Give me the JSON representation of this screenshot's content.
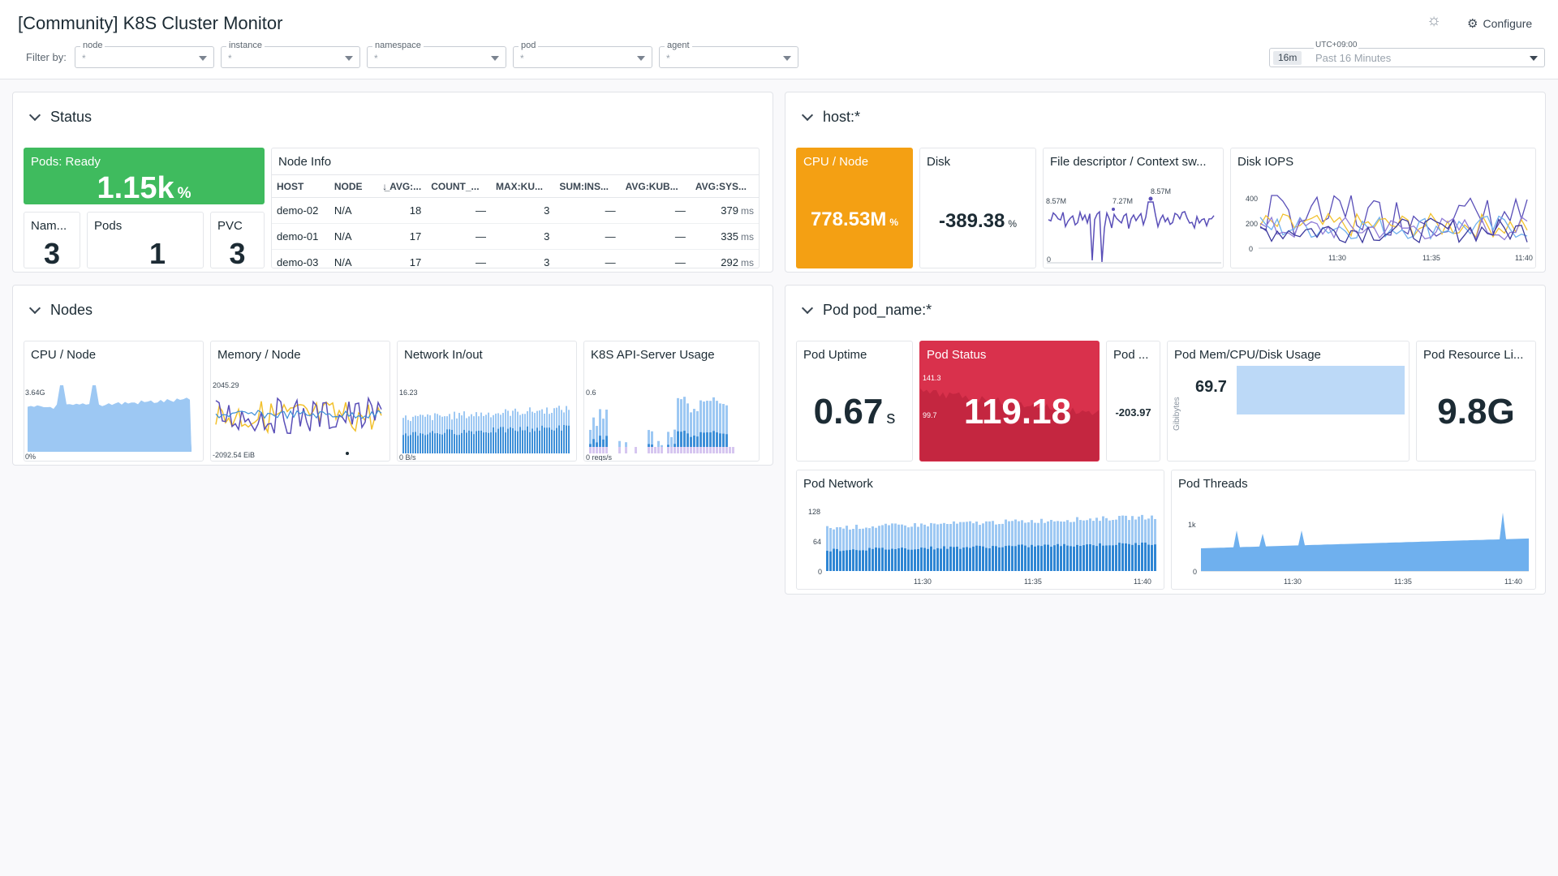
{
  "header": {
    "title": "[Community] K8S Cluster Monitor",
    "configure_label": "Configure",
    "filter_by_label": "Filter by:",
    "filters": [
      {
        "label": "node",
        "value": "*"
      },
      {
        "label": "instance",
        "value": "*"
      },
      {
        "label": "namespace",
        "value": "*"
      },
      {
        "label": "pod",
        "value": "*"
      },
      {
        "label": "agent",
        "value": "*"
      }
    ],
    "time": {
      "timezone": "UTC+09:00",
      "badge": "16m",
      "label": "Past 16 Minutes"
    }
  },
  "icons": {
    "theme": "sun-gear-icon",
    "configure": "gear-icon",
    "collapse": "chevron-down-icon"
  },
  "colors": {
    "green": "#3fbb5e",
    "orange": "#f4a013",
    "red": "#d9314c",
    "blue": "#3d8fd8",
    "light_blue": "#9dc8f3",
    "purple": "#5a4fb8"
  },
  "status": {
    "title": "Status",
    "pods_ready": {
      "title": "Pods: Ready",
      "value": "1.15k",
      "unit": "%"
    },
    "namespaces": {
      "title": "Nam...",
      "value": "3"
    },
    "pods": {
      "title": "Pods",
      "value": "1"
    },
    "pvc": {
      "title": "PVC",
      "value": "3"
    },
    "node_info": {
      "title": "Node Info",
      "columns": [
        "HOST",
        "NODE",
        "AVG:...",
        "COUNT_...",
        "MAX:KU...",
        "SUM:INS...",
        "AVG:KUB...",
        "AVG:SYS..."
      ],
      "rows": [
        {
          "host": "demo-02",
          "node": "N/A",
          "avg": "18",
          "count": "—",
          "max": "3",
          "sum": "—",
          "avg_kub": "—",
          "avg_sys": "379",
          "unit": "ms"
        },
        {
          "host": "demo-01",
          "node": "N/A",
          "avg": "17",
          "count": "—",
          "max": "3",
          "sum": "—",
          "avg_kub": "—",
          "avg_sys": "335",
          "unit": "ms"
        },
        {
          "host": "demo-03",
          "node": "N/A",
          "avg": "17",
          "count": "—",
          "max": "3",
          "sum": "—",
          "avg_kub": "—",
          "avg_sys": "292",
          "unit": "ms"
        }
      ]
    }
  },
  "host": {
    "title": "host:*",
    "cpu_node": {
      "title": "CPU / Node",
      "value": "778.53M",
      "unit": "%"
    },
    "disk": {
      "title": "Disk",
      "value": "-389.38",
      "unit": "%"
    },
    "file_descriptor": {
      "title": "File descriptor / Context sw...",
      "y_label": "8.57M",
      "y_min": "0",
      "ann_1": "7.27M",
      "ann_2": "8.57M"
    },
    "disk_iops": {
      "title": "Disk IOPS",
      "y_ticks": [
        "400",
        "200",
        "0"
      ],
      "x_ticks": [
        "11:30",
        "11:35",
        "11:40"
      ]
    }
  },
  "nodes": {
    "title": "Nodes",
    "cpu": {
      "title": "CPU / Node",
      "y_top": "3.64G",
      "y_bottom": "0%"
    },
    "memory": {
      "title": "Memory / Node",
      "y_top": "2045.29",
      "y_bottom": "-2092.54 EiB"
    },
    "network": {
      "title": "Network In/out",
      "y_top": "16.23",
      "y_bottom": "0 B/s"
    },
    "api": {
      "title": "K8S API-Server Usage",
      "y_top": "0.6",
      "y_bottom": "0 reqs/s"
    }
  },
  "pod": {
    "title": "Pod pod_name:*",
    "uptime": {
      "title": "Pod Uptime",
      "value": "0.67",
      "unit": "s"
    },
    "status": {
      "title": "Pod Status",
      "value": "119.18",
      "y_top": "141.3",
      "y_mid": "99.7"
    },
    "pod_short": {
      "title": "Pod ...",
      "value": "-203.97"
    },
    "mem_cpu_disk": {
      "title": "Pod Mem/CPU/Disk Usage",
      "value": "69.7",
      "axis_label": "Gibibytes"
    },
    "resource_limit": {
      "title": "Pod Resource Li...",
      "value": "9.8G"
    },
    "network": {
      "title": "Pod Network",
      "y_ticks": [
        "128",
        "64",
        "0"
      ],
      "x_ticks": [
        "11:30",
        "11:35",
        "11:40"
      ]
    },
    "threads": {
      "title": "Pod Threads",
      "y_ticks": [
        "1k",
        "0"
      ],
      "x_ticks": [
        "11:30",
        "11:35",
        "11:40"
      ]
    }
  }
}
